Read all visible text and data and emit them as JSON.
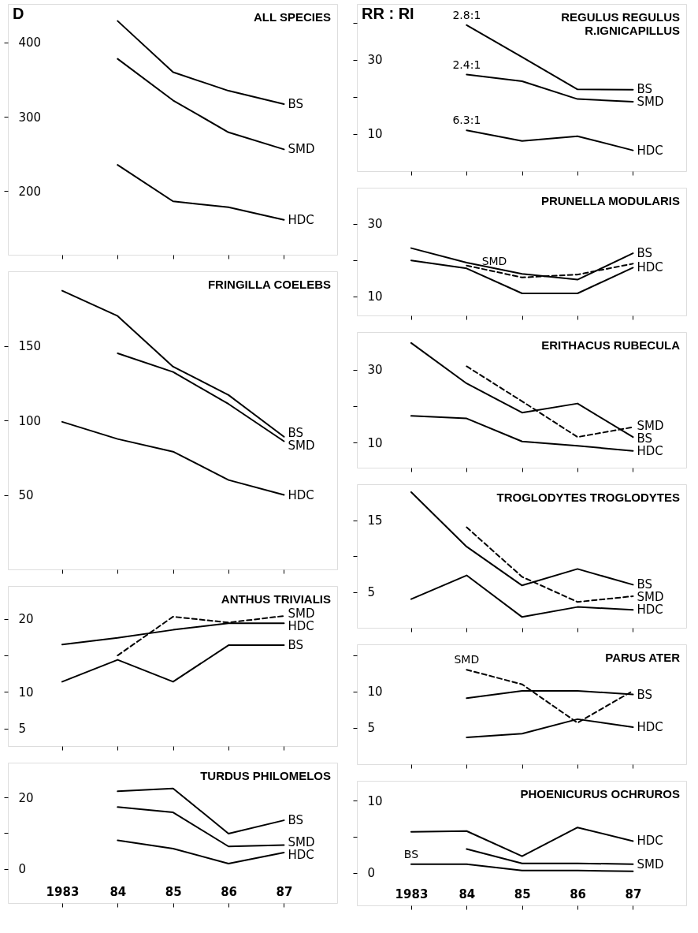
{
  "chart_data": [
    {
      "type": "line",
      "title": "ALL SPECIES",
      "annotations": [
        "D"
      ],
      "x": [
        1984,
        1985,
        1986,
        1987
      ],
      "xlim": [
        1982.02,
        1987.96
      ],
      "xticks": [
        1983,
        1984,
        1985,
        1986,
        1987
      ],
      "ylim": [
        114,
        452
      ],
      "yticks": [
        200,
        300,
        400
      ],
      "tick_labels": "y",
      "grid": false,
      "series": [
        {
          "name": "BS",
          "color": "#000000",
          "values": [
            429,
            360,
            335,
            317
          ]
        },
        {
          "name": "SMD",
          "color": "#000000",
          "values": [
            378,
            322,
            279,
            256
          ]
        },
        {
          "name": "HDC",
          "color": "#000000",
          "values": [
            235,
            186,
            178,
            161
          ]
        }
      ]
    },
    {
      "type": "line",
      "title": "FRINGILLA COELEBS",
      "x": [
        1983,
        1984,
        1985,
        1986,
        1987
      ],
      "xlim": [
        1982.02,
        1987.96
      ],
      "xticks": [
        1983,
        1984,
        1985,
        1986,
        1987
      ],
      "ylim": [
        0,
        200
      ],
      "yticks": [
        50,
        100,
        150
      ],
      "tick_labels": "y",
      "grid": false,
      "series": [
        {
          "name": "BS",
          "color": "#000000",
          "values": [
            187,
            170,
            136,
            117,
            89
          ]
        },
        {
          "name": "SMD",
          "color": "#000000",
          "x": [
            1984,
            1985,
            1986,
            1987
          ],
          "values": [
            145,
            132.5,
            111,
            86
          ]
        },
        {
          "name": "HDC",
          "color": "#000000",
          "values": [
            99,
            87.5,
            79,
            60,
            50
          ]
        }
      ]
    },
    {
      "type": "line",
      "title": "ANTHUS TRIVIALIS",
      "x": [
        1983,
        1984,
        1985,
        1986,
        1987
      ],
      "xlim": [
        1982.02,
        1987.96
      ],
      "xticks": [
        1983,
        1984,
        1985,
        1986,
        1987
      ],
      "ylim": [
        2.6,
        24.5
      ],
      "yticks": [
        5,
        10,
        {
          "value": 15,
          "label": null
        },
        20
      ],
      "tick_labels": "y",
      "grid": false,
      "series": [
        {
          "name": "SMD",
          "color": "#000000",
          "line_style": "dashed",
          "x": [
            1984,
            1985,
            1986,
            1987
          ],
          "values": [
            15.0,
            20.3,
            19.5,
            20.4
          ]
        },
        {
          "name": "HDC",
          "color": "#000000",
          "values": [
            16.5,
            17.4,
            18.5,
            19.4,
            19.4
          ]
        },
        {
          "name": "BS",
          "color": "#000000",
          "values": [
            11.4,
            14.4,
            11.4,
            16.4,
            16.4
          ]
        }
      ]
    },
    {
      "type": "line",
      "title": "TURDUS PHILOMELOS",
      "x": [
        1984,
        1985,
        1986,
        1987
      ],
      "xlim": [
        1982.02,
        1987.96
      ],
      "xticks": [
        {
          "value": 1983,
          "label": "1983"
        },
        {
          "value": 1984,
          "label": "84"
        },
        {
          "value": 1985,
          "label": "85"
        },
        {
          "value": 1986,
          "label": "86"
        },
        {
          "value": 1987,
          "label": "87"
        }
      ],
      "ylim": [
        -9.5,
        29.7
      ],
      "yticks": [
        0,
        {
          "value": 10,
          "label": null
        },
        20
      ],
      "grid": false,
      "series": [
        {
          "name": "BS",
          "color": "#000000",
          "values": [
            21.7,
            22.5,
            9.9,
            13.6
          ]
        },
        {
          "name": "SMD",
          "color": "#000000",
          "values": [
            17.3,
            15.8,
            6.3,
            6.7
          ]
        },
        {
          "name": "HDC",
          "color": "#000000",
          "values": [
            8.0,
            5.7,
            1.5,
            4.6
          ]
        }
      ]
    },
    {
      "type": "line",
      "title": "REGULUS REGULUS\nR.IGNICAPILLUS",
      "annotations": [
        "RR : RI",
        {
          "text": "2.8:1",
          "x": 1984,
          "y": 39.3
        },
        {
          "text": "2.4:1",
          "x": 1984,
          "y": 26.0
        },
        {
          "text": "6.3:1",
          "x": 1984,
          "y": 11.0
        }
      ],
      "x": [
        1984,
        1985,
        1986,
        1987
      ],
      "xlim": [
        1982.02,
        1987.96
      ],
      "xticks": [
        1983,
        1984,
        1985,
        1986,
        1987
      ],
      "ylim": [
        0,
        45
      ],
      "yticks": [
        10,
        {
          "value": 20,
          "label": null
        },
        30,
        {
          "value": 40,
          "label": null
        }
      ],
      "tick_labels": "y",
      "grid": false,
      "series": [
        {
          "name": "BS",
          "color": "#000000",
          "values": [
            39.3,
            30.7,
            22.0,
            21.9
          ]
        },
        {
          "name": "SMD",
          "color": "#000000",
          "values": [
            26.0,
            24.2,
            19.4,
            18.7
          ]
        },
        {
          "name": "HDC",
          "color": "#000000",
          "values": [
            11.0,
            8.1,
            9.4,
            5.6
          ]
        }
      ]
    },
    {
      "type": "line",
      "title": "PRUNELLA MODULARIS",
      "annotations": [
        {
          "text": "SMD",
          "x": 1984.5,
          "y": 16.9
        }
      ],
      "x": [
        1983,
        1984,
        1985,
        1986,
        1987
      ],
      "xlim": [
        1982.02,
        1987.96
      ],
      "xticks": [
        1983,
        1984,
        1985,
        1986,
        1987
      ],
      "ylim": [
        4.7,
        40
      ],
      "yticks": [
        10,
        {
          "value": 20,
          "label": null
        },
        30
      ],
      "tick_labels": "y",
      "grid": false,
      "series": [
        {
          "name": "BS",
          "color": "#000000",
          "values": [
            23.3,
            19.3,
            16.2,
            14.6,
            21.9
          ]
        },
        {
          "color": "#000000",
          "line_style": "dashed",
          "x": [
            1984,
            1985,
            1986,
            1987
          ],
          "values": [
            18.5,
            15.2,
            16.0,
            19.0
          ]
        },
        {
          "name": "HDC",
          "color": "#000000",
          "values": [
            19.9,
            17.7,
            10.8,
            10.8,
            17.9
          ]
        }
      ]
    },
    {
      "type": "line",
      "title": "ERITHACUS RUBECULA",
      "x": [
        1983,
        1984,
        1985,
        1986,
        1987
      ],
      "xlim": [
        1982.02,
        1987.96
      ],
      "xticks": [
        1983,
        1984,
        1985,
        1986,
        1987
      ],
      "ylim": [
        3.1,
        40.3
      ],
      "yticks": [
        10,
        {
          "value": 20,
          "label": null
        },
        30
      ],
      "tick_labels": "y",
      "grid": false,
      "series": [
        {
          "name": "SMD",
          "color": "#000000",
          "line_style": "dashed",
          "x": [
            1984,
            1985,
            1986,
            1987
          ],
          "values": [
            30.9,
            21.3,
            11.5,
            14.2
          ]
        },
        {
          "name": "BS",
          "color": "#000000",
          "values": [
            37.3,
            26.2,
            18.2,
            20.7,
            11.5
          ]
        },
        {
          "name": "HDC",
          "color": "#000000",
          "values": [
            17.3,
            16.6,
            10.3,
            9.1,
            7.7
          ]
        }
      ]
    },
    {
      "type": "line",
      "title": "TROGLODYTES TROGLODYTES",
      "x": [
        1983,
        1984,
        1985,
        1986,
        1987
      ],
      "xlim": [
        1982.02,
        1987.96
      ],
      "xticks": [
        1983,
        1984,
        1985,
        1986,
        1987
      ],
      "ylim": [
        0,
        20
      ],
      "yticks": [
        5,
        {
          "value": 10,
          "label": null
        },
        15
      ],
      "tick_labels": "y",
      "grid": false,
      "series": [
        {
          "name": "BS",
          "color": "#000000",
          "values": [
            18.9,
            11.3,
            5.9,
            8.2,
            6.0
          ]
        },
        {
          "name": "SMD",
          "color": "#000000",
          "line_style": "dashed",
          "x": [
            1984,
            1985,
            1986,
            1987
          ],
          "values": [
            14.0,
            7.1,
            3.6,
            4.4
          ]
        },
        {
          "name": "HDC",
          "color": "#000000",
          "values": [
            4.0,
            7.3,
            1.5,
            2.9,
            2.5
          ]
        }
      ]
    },
    {
      "type": "line",
      "title": "PARUS ATER",
      "annotations": [
        {
          "text": "SMD",
          "x": 1984,
          "y": 13.0
        }
      ],
      "x": [
        1984,
        1985,
        1986,
        1987
      ],
      "xlim": [
        1982.02,
        1987.96
      ],
      "xticks": [
        1983,
        1984,
        1985,
        1986,
        1987
      ],
      "ylim": [
        0,
        16.5
      ],
      "yticks": [
        5,
        10,
        {
          "value": 15,
          "label": null
        }
      ],
      "tick_labels": "y",
      "grid": false,
      "series": [
        {
          "color": "#000000",
          "line_style": "dashed",
          "values": [
            13.0,
            11.0,
            5.7,
            10.1
          ]
        },
        {
          "name": "BS",
          "color": "#000000",
          "values": [
            9.1,
            10.1,
            10.1,
            9.6
          ]
        },
        {
          "name": "HDC",
          "color": "#000000",
          "values": [
            3.7,
            4.2,
            6.2,
            5.1
          ]
        }
      ]
    },
    {
      "type": "line",
      "title": "PHOENICURUS OCHRUROS",
      "annotations": [
        {
          "text": "BS",
          "x": 1983,
          "y": 1.2
        }
      ],
      "x": [
        1983,
        1984,
        1985,
        1986,
        1987
      ],
      "xlim": [
        1982.02,
        1987.96
      ],
      "xticks": [
        {
          "value": 1983,
          "label": "1983"
        },
        {
          "value": 1984,
          "label": "84"
        },
        {
          "value": 1985,
          "label": "85"
        },
        {
          "value": 1986,
          "label": "86"
        },
        {
          "value": 1987,
          "label": "87"
        }
      ],
      "ylim": [
        -4.55,
        12.8
      ],
      "yticks": [
        0,
        {
          "value": 5,
          "label": null
        },
        10
      ],
      "grid": false,
      "series": [
        {
          "name": "HDC",
          "color": "#000000",
          "values": [
            5.7,
            5.8,
            2.3,
            6.3,
            4.4
          ]
        },
        {
          "name": "SMD",
          "color": "#000000",
          "x": [
            1984,
            1985,
            1986,
            1987
          ],
          "values": [
            3.3,
            1.3,
            1.3,
            1.2
          ]
        },
        {
          "color": "#000000",
          "values": [
            1.2,
            1.2,
            0.3,
            0.3,
            0.2
          ]
        }
      ]
    }
  ]
}
